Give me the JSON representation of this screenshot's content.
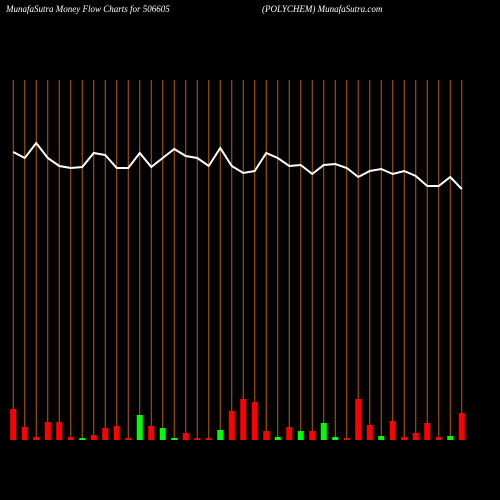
{
  "chart_data": {
    "type": "combo",
    "title": "MunafaSutra  Money Flow  Charts for 506605",
    "subtitle": "(POLYCHEM) MunafaSutra.com",
    "categories": [
      null,
      null,
      null,
      null,
      null,
      null,
      null,
      null,
      null,
      null,
      null,
      null,
      null,
      null,
      null,
      null,
      null,
      null,
      null,
      null,
      null,
      null,
      null,
      null,
      null,
      null,
      null,
      null,
      null,
      null,
      null,
      null,
      null,
      null,
      null,
      null,
      null,
      null,
      null,
      null
    ],
    "values": [
      31,
      13,
      3,
      18,
      18,
      3,
      2,
      5,
      12,
      14,
      2,
      25,
      14,
      12,
      2,
      7,
      2,
      2,
      10,
      29,
      41,
      38,
      9,
      3,
      13,
      9,
      9,
      17,
      3,
      2,
      41,
      15,
      4,
      19,
      3,
      7,
      17,
      3,
      4,
      27
    ],
    "colors": [
      "#ff0000",
      "#ff0000",
      "#ff0000",
      "#ff0000",
      "#ff0000",
      "#ff0000",
      "#00ff00",
      "#ff0000",
      "#ff0000",
      "#ff0000",
      "#ff0000",
      "#00ff00",
      "#ff0000",
      "#00ff00",
      "#00ff00",
      "#ff0000",
      "#ff0000",
      "#ff0000",
      "#00ff00",
      "#ff0000",
      "#ff0000",
      "#ff0000",
      "#ff0000",
      "#00ff00",
      "#ff0000",
      "#00ff00",
      "#ff0000",
      "#00ff00",
      "#00ff00",
      "#ff0000",
      "#ff0000",
      "#ff0000",
      "#00ff00",
      "#ff0000",
      "#ff0000",
      "#ff0000",
      "#ff0000",
      "#ff0000",
      "#00ff00",
      "#ff0000"
    ],
    "line_values": [
      288,
      282,
      297,
      282,
      274,
      272,
      273,
      287,
      285,
      272,
      272,
      287,
      273,
      282,
      291,
      284,
      282,
      274,
      292,
      274,
      267,
      269,
      287,
      282,
      274,
      275,
      266,
      275,
      276,
      272,
      263,
      269,
      271,
      266,
      269,
      264,
      254,
      254,
      263,
      251
    ],
    "line_color": "#ffffff",
    "grid_color": "#b8600b",
    "ylim": [
      0,
      360
    ]
  }
}
